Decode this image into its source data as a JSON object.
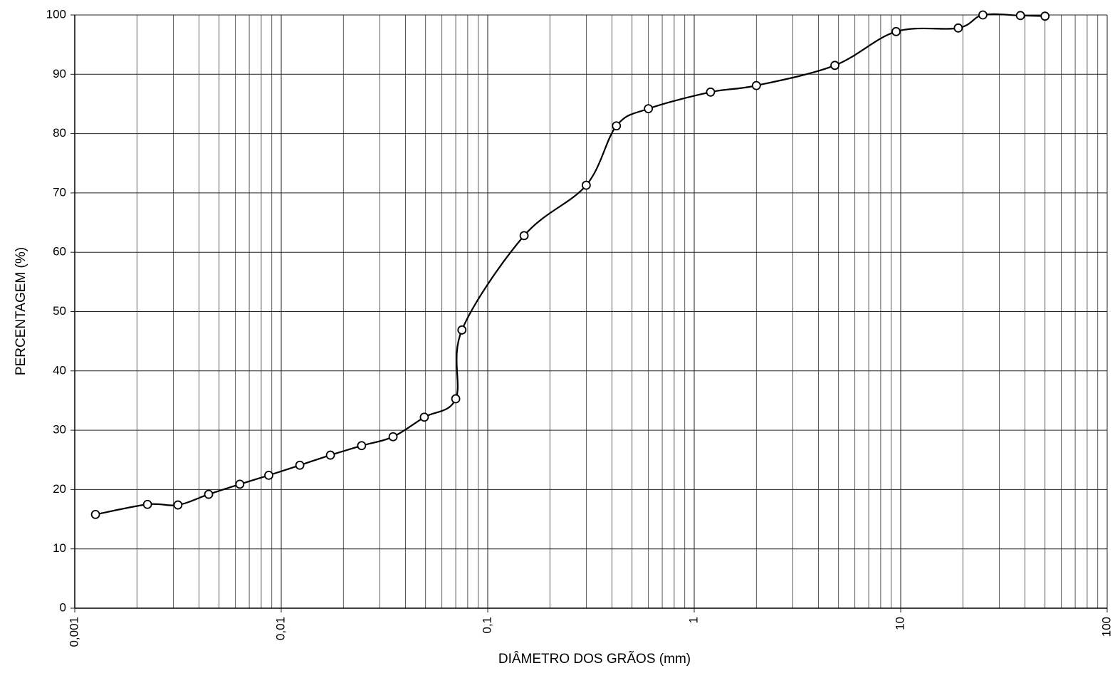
{
  "chart_data": {
    "type": "line",
    "x_label": "DIÂMETRO DOS GRÃOS (mm)",
    "y_label": "PERCENTAGEM (%)",
    "x_log": true,
    "grid": true,
    "xlim": [
      0.001,
      100
    ],
    "xticks": [
      {
        "value": 0.001,
        "label": "0,001"
      },
      {
        "value": 0.01,
        "label": "0,01"
      },
      {
        "value": 0.1,
        "label": "0,1"
      },
      1,
      10,
      100
    ],
    "ylim": [
      0,
      100
    ],
    "yticks": [
      0,
      10,
      20,
      30,
      40,
      50,
      60,
      70,
      80,
      90,
      100
    ],
    "series": [
      {
        "color": "#000000",
        "x": [
          0.00126,
          0.00225,
          0.00316,
          0.00445,
          0.0063,
          0.0087,
          0.0123,
          0.0173,
          0.0245,
          0.0348,
          0.0493,
          0.07,
          0.075,
          0.15,
          0.3,
          0.42,
          0.6,
          1.2,
          2.0,
          4.8,
          9.5,
          19,
          25,
          38,
          50
        ],
        "values": [
          15.8,
          17.5,
          17.4,
          19.2,
          20.9,
          22.4,
          24.1,
          25.8,
          27.4,
          28.9,
          32.2,
          35.3,
          46.9,
          62.8,
          71.3,
          81.3,
          84.2,
          87.0,
          88.1,
          91.5,
          97.2,
          97.8,
          100,
          99.9,
          99.8
        ]
      }
    ]
  }
}
